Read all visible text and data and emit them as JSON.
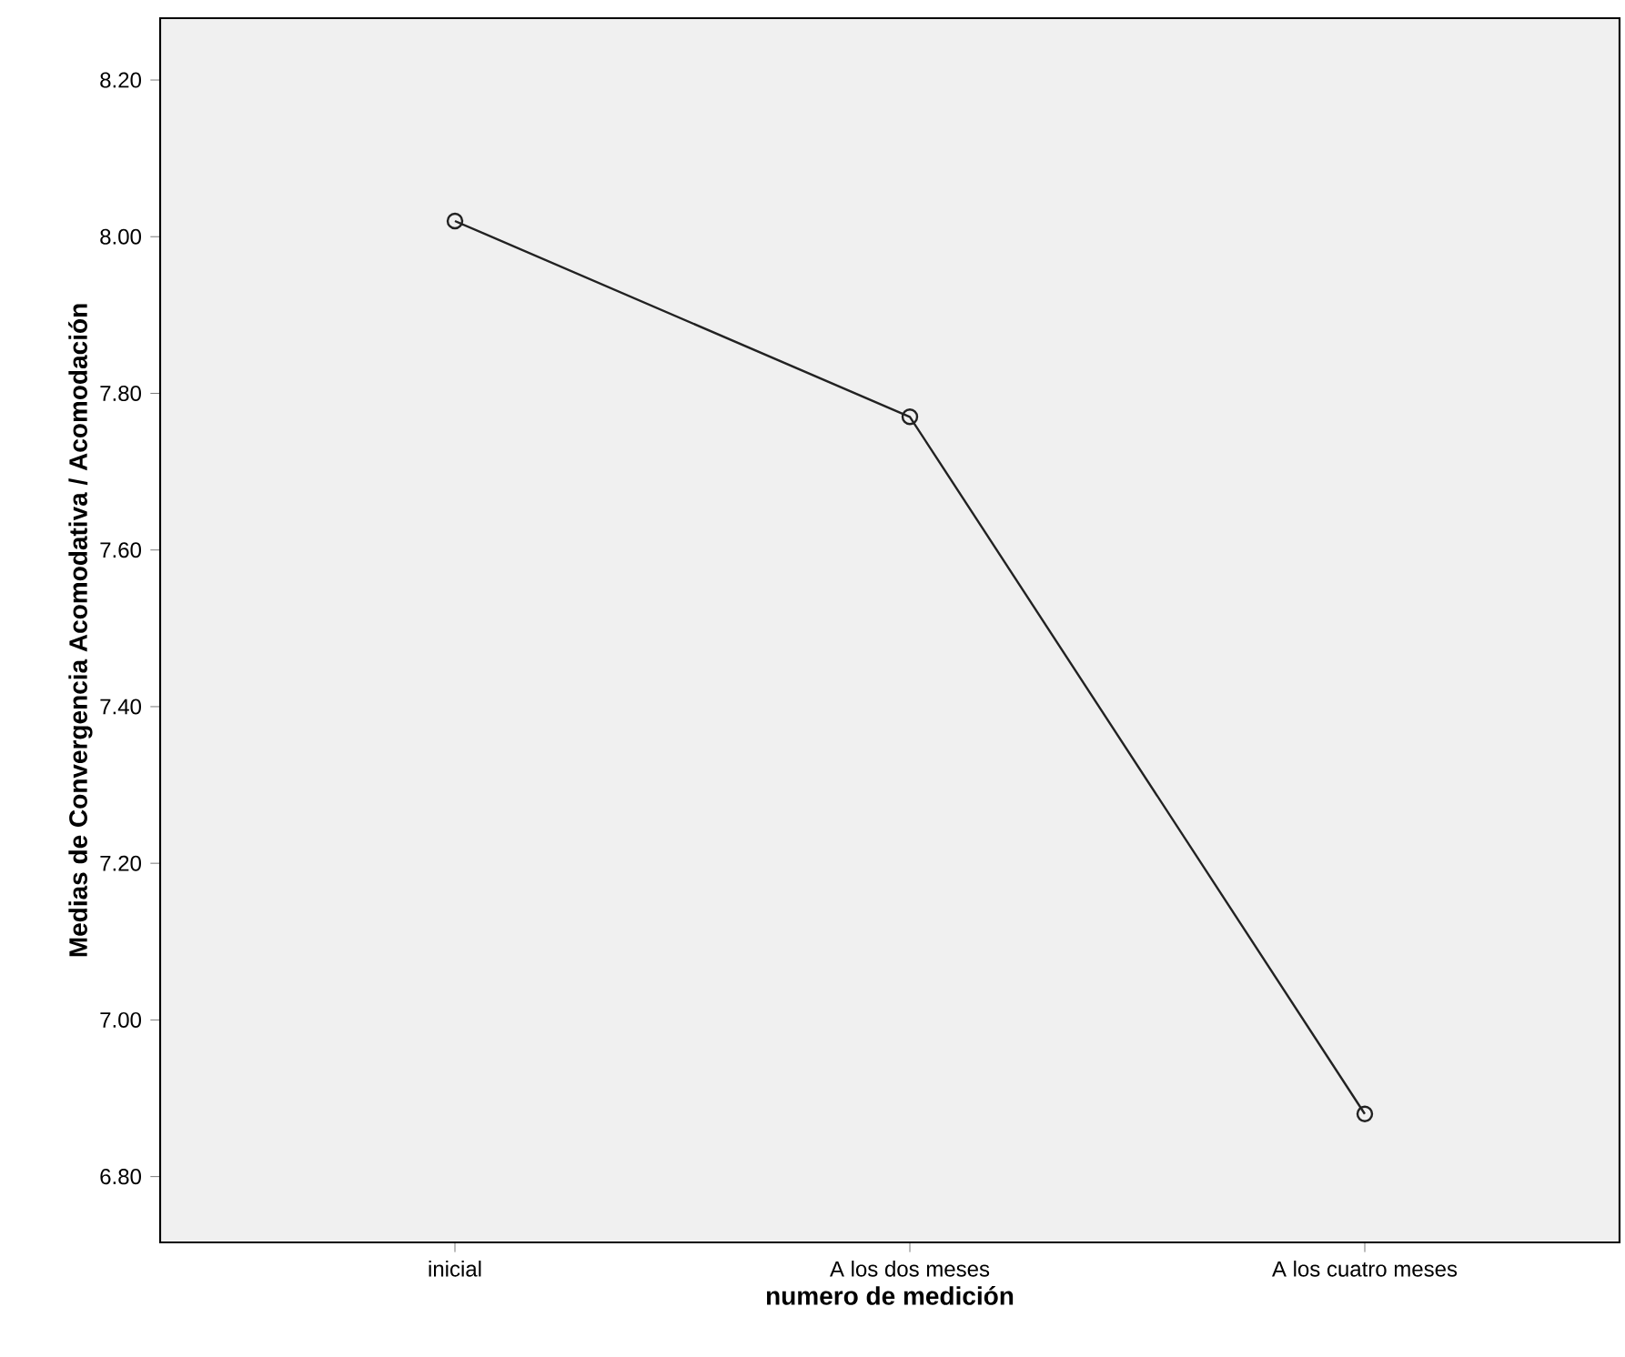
{
  "chart_data": {
    "type": "line",
    "xlabel": "numero de medición",
    "ylabel": "Medias  de Convergencia Acomodativa / Acomodación",
    "categories": [
      "inicial",
      "A los dos meses",
      "A los cuatro meses"
    ],
    "values": [
      8.02,
      7.77,
      6.88
    ],
    "color": "#222222",
    "marker": "circle",
    "line_style": "solid",
    "ylim": [
      6.716,
      8.279
    ],
    "yticks": [
      {
        "value": 6.8,
        "label": "6.80"
      },
      {
        "value": 7.0,
        "label": "7.00"
      },
      {
        "value": 7.2,
        "label": "7.20"
      },
      {
        "value": 7.4,
        "label": "7.40"
      },
      {
        "value": 7.6,
        "label": "7.60"
      },
      {
        "value": 7.8,
        "label": "7.80"
      },
      {
        "value": 8.0,
        "label": "8.00"
      },
      {
        "value": 8.2,
        "label": "8.20"
      }
    ],
    "grid": false
  }
}
